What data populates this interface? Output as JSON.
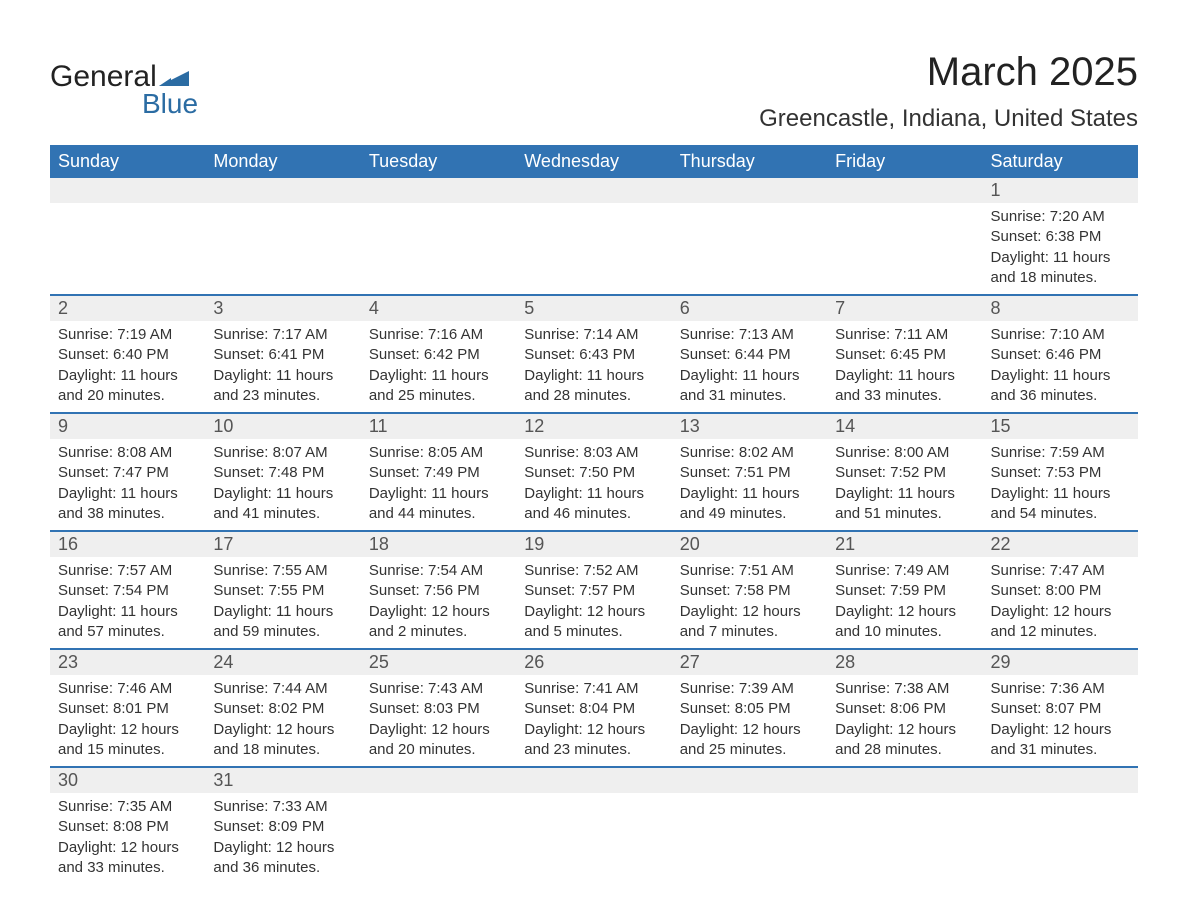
{
  "logo": {
    "word1": "General",
    "word2": "Blue",
    "brand_color": "#2b6ca3"
  },
  "title": "March 2025",
  "subtitle": "Greencastle, Indiana, United States",
  "colors": {
    "header_bg": "#3173b3",
    "header_text": "#ffffff",
    "daynum_bg": "#efefef",
    "border": "#3173b3",
    "text": "#333333",
    "background": "#ffffff"
  },
  "typography": {
    "title_fontsize": 40,
    "subtitle_fontsize": 24,
    "header_fontsize": 18,
    "daynum_fontsize": 18,
    "body_fontsize": 15
  },
  "day_headers": [
    "Sunday",
    "Monday",
    "Tuesday",
    "Wednesday",
    "Thursday",
    "Friday",
    "Saturday"
  ],
  "weeks": [
    [
      null,
      null,
      null,
      null,
      null,
      null,
      {
        "n": "1",
        "sunrise": "Sunrise: 7:20 AM",
        "sunset": "Sunset: 6:38 PM",
        "dl1": "Daylight: 11 hours",
        "dl2": "and 18 minutes."
      }
    ],
    [
      {
        "n": "2",
        "sunrise": "Sunrise: 7:19 AM",
        "sunset": "Sunset: 6:40 PM",
        "dl1": "Daylight: 11 hours",
        "dl2": "and 20 minutes."
      },
      {
        "n": "3",
        "sunrise": "Sunrise: 7:17 AM",
        "sunset": "Sunset: 6:41 PM",
        "dl1": "Daylight: 11 hours",
        "dl2": "and 23 minutes."
      },
      {
        "n": "4",
        "sunrise": "Sunrise: 7:16 AM",
        "sunset": "Sunset: 6:42 PM",
        "dl1": "Daylight: 11 hours",
        "dl2": "and 25 minutes."
      },
      {
        "n": "5",
        "sunrise": "Sunrise: 7:14 AM",
        "sunset": "Sunset: 6:43 PM",
        "dl1": "Daylight: 11 hours",
        "dl2": "and 28 minutes."
      },
      {
        "n": "6",
        "sunrise": "Sunrise: 7:13 AM",
        "sunset": "Sunset: 6:44 PM",
        "dl1": "Daylight: 11 hours",
        "dl2": "and 31 minutes."
      },
      {
        "n": "7",
        "sunrise": "Sunrise: 7:11 AM",
        "sunset": "Sunset: 6:45 PM",
        "dl1": "Daylight: 11 hours",
        "dl2": "and 33 minutes."
      },
      {
        "n": "8",
        "sunrise": "Sunrise: 7:10 AM",
        "sunset": "Sunset: 6:46 PM",
        "dl1": "Daylight: 11 hours",
        "dl2": "and 36 minutes."
      }
    ],
    [
      {
        "n": "9",
        "sunrise": "Sunrise: 8:08 AM",
        "sunset": "Sunset: 7:47 PM",
        "dl1": "Daylight: 11 hours",
        "dl2": "and 38 minutes."
      },
      {
        "n": "10",
        "sunrise": "Sunrise: 8:07 AM",
        "sunset": "Sunset: 7:48 PM",
        "dl1": "Daylight: 11 hours",
        "dl2": "and 41 minutes."
      },
      {
        "n": "11",
        "sunrise": "Sunrise: 8:05 AM",
        "sunset": "Sunset: 7:49 PM",
        "dl1": "Daylight: 11 hours",
        "dl2": "and 44 minutes."
      },
      {
        "n": "12",
        "sunrise": "Sunrise: 8:03 AM",
        "sunset": "Sunset: 7:50 PM",
        "dl1": "Daylight: 11 hours",
        "dl2": "and 46 minutes."
      },
      {
        "n": "13",
        "sunrise": "Sunrise: 8:02 AM",
        "sunset": "Sunset: 7:51 PM",
        "dl1": "Daylight: 11 hours",
        "dl2": "and 49 minutes."
      },
      {
        "n": "14",
        "sunrise": "Sunrise: 8:00 AM",
        "sunset": "Sunset: 7:52 PM",
        "dl1": "Daylight: 11 hours",
        "dl2": "and 51 minutes."
      },
      {
        "n": "15",
        "sunrise": "Sunrise: 7:59 AM",
        "sunset": "Sunset: 7:53 PM",
        "dl1": "Daylight: 11 hours",
        "dl2": "and 54 minutes."
      }
    ],
    [
      {
        "n": "16",
        "sunrise": "Sunrise: 7:57 AM",
        "sunset": "Sunset: 7:54 PM",
        "dl1": "Daylight: 11 hours",
        "dl2": "and 57 minutes."
      },
      {
        "n": "17",
        "sunrise": "Sunrise: 7:55 AM",
        "sunset": "Sunset: 7:55 PM",
        "dl1": "Daylight: 11 hours",
        "dl2": "and 59 minutes."
      },
      {
        "n": "18",
        "sunrise": "Sunrise: 7:54 AM",
        "sunset": "Sunset: 7:56 PM",
        "dl1": "Daylight: 12 hours",
        "dl2": "and 2 minutes."
      },
      {
        "n": "19",
        "sunrise": "Sunrise: 7:52 AM",
        "sunset": "Sunset: 7:57 PM",
        "dl1": "Daylight: 12 hours",
        "dl2": "and 5 minutes."
      },
      {
        "n": "20",
        "sunrise": "Sunrise: 7:51 AM",
        "sunset": "Sunset: 7:58 PM",
        "dl1": "Daylight: 12 hours",
        "dl2": "and 7 minutes."
      },
      {
        "n": "21",
        "sunrise": "Sunrise: 7:49 AM",
        "sunset": "Sunset: 7:59 PM",
        "dl1": "Daylight: 12 hours",
        "dl2": "and 10 minutes."
      },
      {
        "n": "22",
        "sunrise": "Sunrise: 7:47 AM",
        "sunset": "Sunset: 8:00 PM",
        "dl1": "Daylight: 12 hours",
        "dl2": "and 12 minutes."
      }
    ],
    [
      {
        "n": "23",
        "sunrise": "Sunrise: 7:46 AM",
        "sunset": "Sunset: 8:01 PM",
        "dl1": "Daylight: 12 hours",
        "dl2": "and 15 minutes."
      },
      {
        "n": "24",
        "sunrise": "Sunrise: 7:44 AM",
        "sunset": "Sunset: 8:02 PM",
        "dl1": "Daylight: 12 hours",
        "dl2": "and 18 minutes."
      },
      {
        "n": "25",
        "sunrise": "Sunrise: 7:43 AM",
        "sunset": "Sunset: 8:03 PM",
        "dl1": "Daylight: 12 hours",
        "dl2": "and 20 minutes."
      },
      {
        "n": "26",
        "sunrise": "Sunrise: 7:41 AM",
        "sunset": "Sunset: 8:04 PM",
        "dl1": "Daylight: 12 hours",
        "dl2": "and 23 minutes."
      },
      {
        "n": "27",
        "sunrise": "Sunrise: 7:39 AM",
        "sunset": "Sunset: 8:05 PM",
        "dl1": "Daylight: 12 hours",
        "dl2": "and 25 minutes."
      },
      {
        "n": "28",
        "sunrise": "Sunrise: 7:38 AM",
        "sunset": "Sunset: 8:06 PM",
        "dl1": "Daylight: 12 hours",
        "dl2": "and 28 minutes."
      },
      {
        "n": "29",
        "sunrise": "Sunrise: 7:36 AM",
        "sunset": "Sunset: 8:07 PM",
        "dl1": "Daylight: 12 hours",
        "dl2": "and 31 minutes."
      }
    ],
    [
      {
        "n": "30",
        "sunrise": "Sunrise: 7:35 AM",
        "sunset": "Sunset: 8:08 PM",
        "dl1": "Daylight: 12 hours",
        "dl2": "and 33 minutes."
      },
      {
        "n": "31",
        "sunrise": "Sunrise: 7:33 AM",
        "sunset": "Sunset: 8:09 PM",
        "dl1": "Daylight: 12 hours",
        "dl2": "and 36 minutes."
      },
      null,
      null,
      null,
      null,
      null
    ]
  ]
}
